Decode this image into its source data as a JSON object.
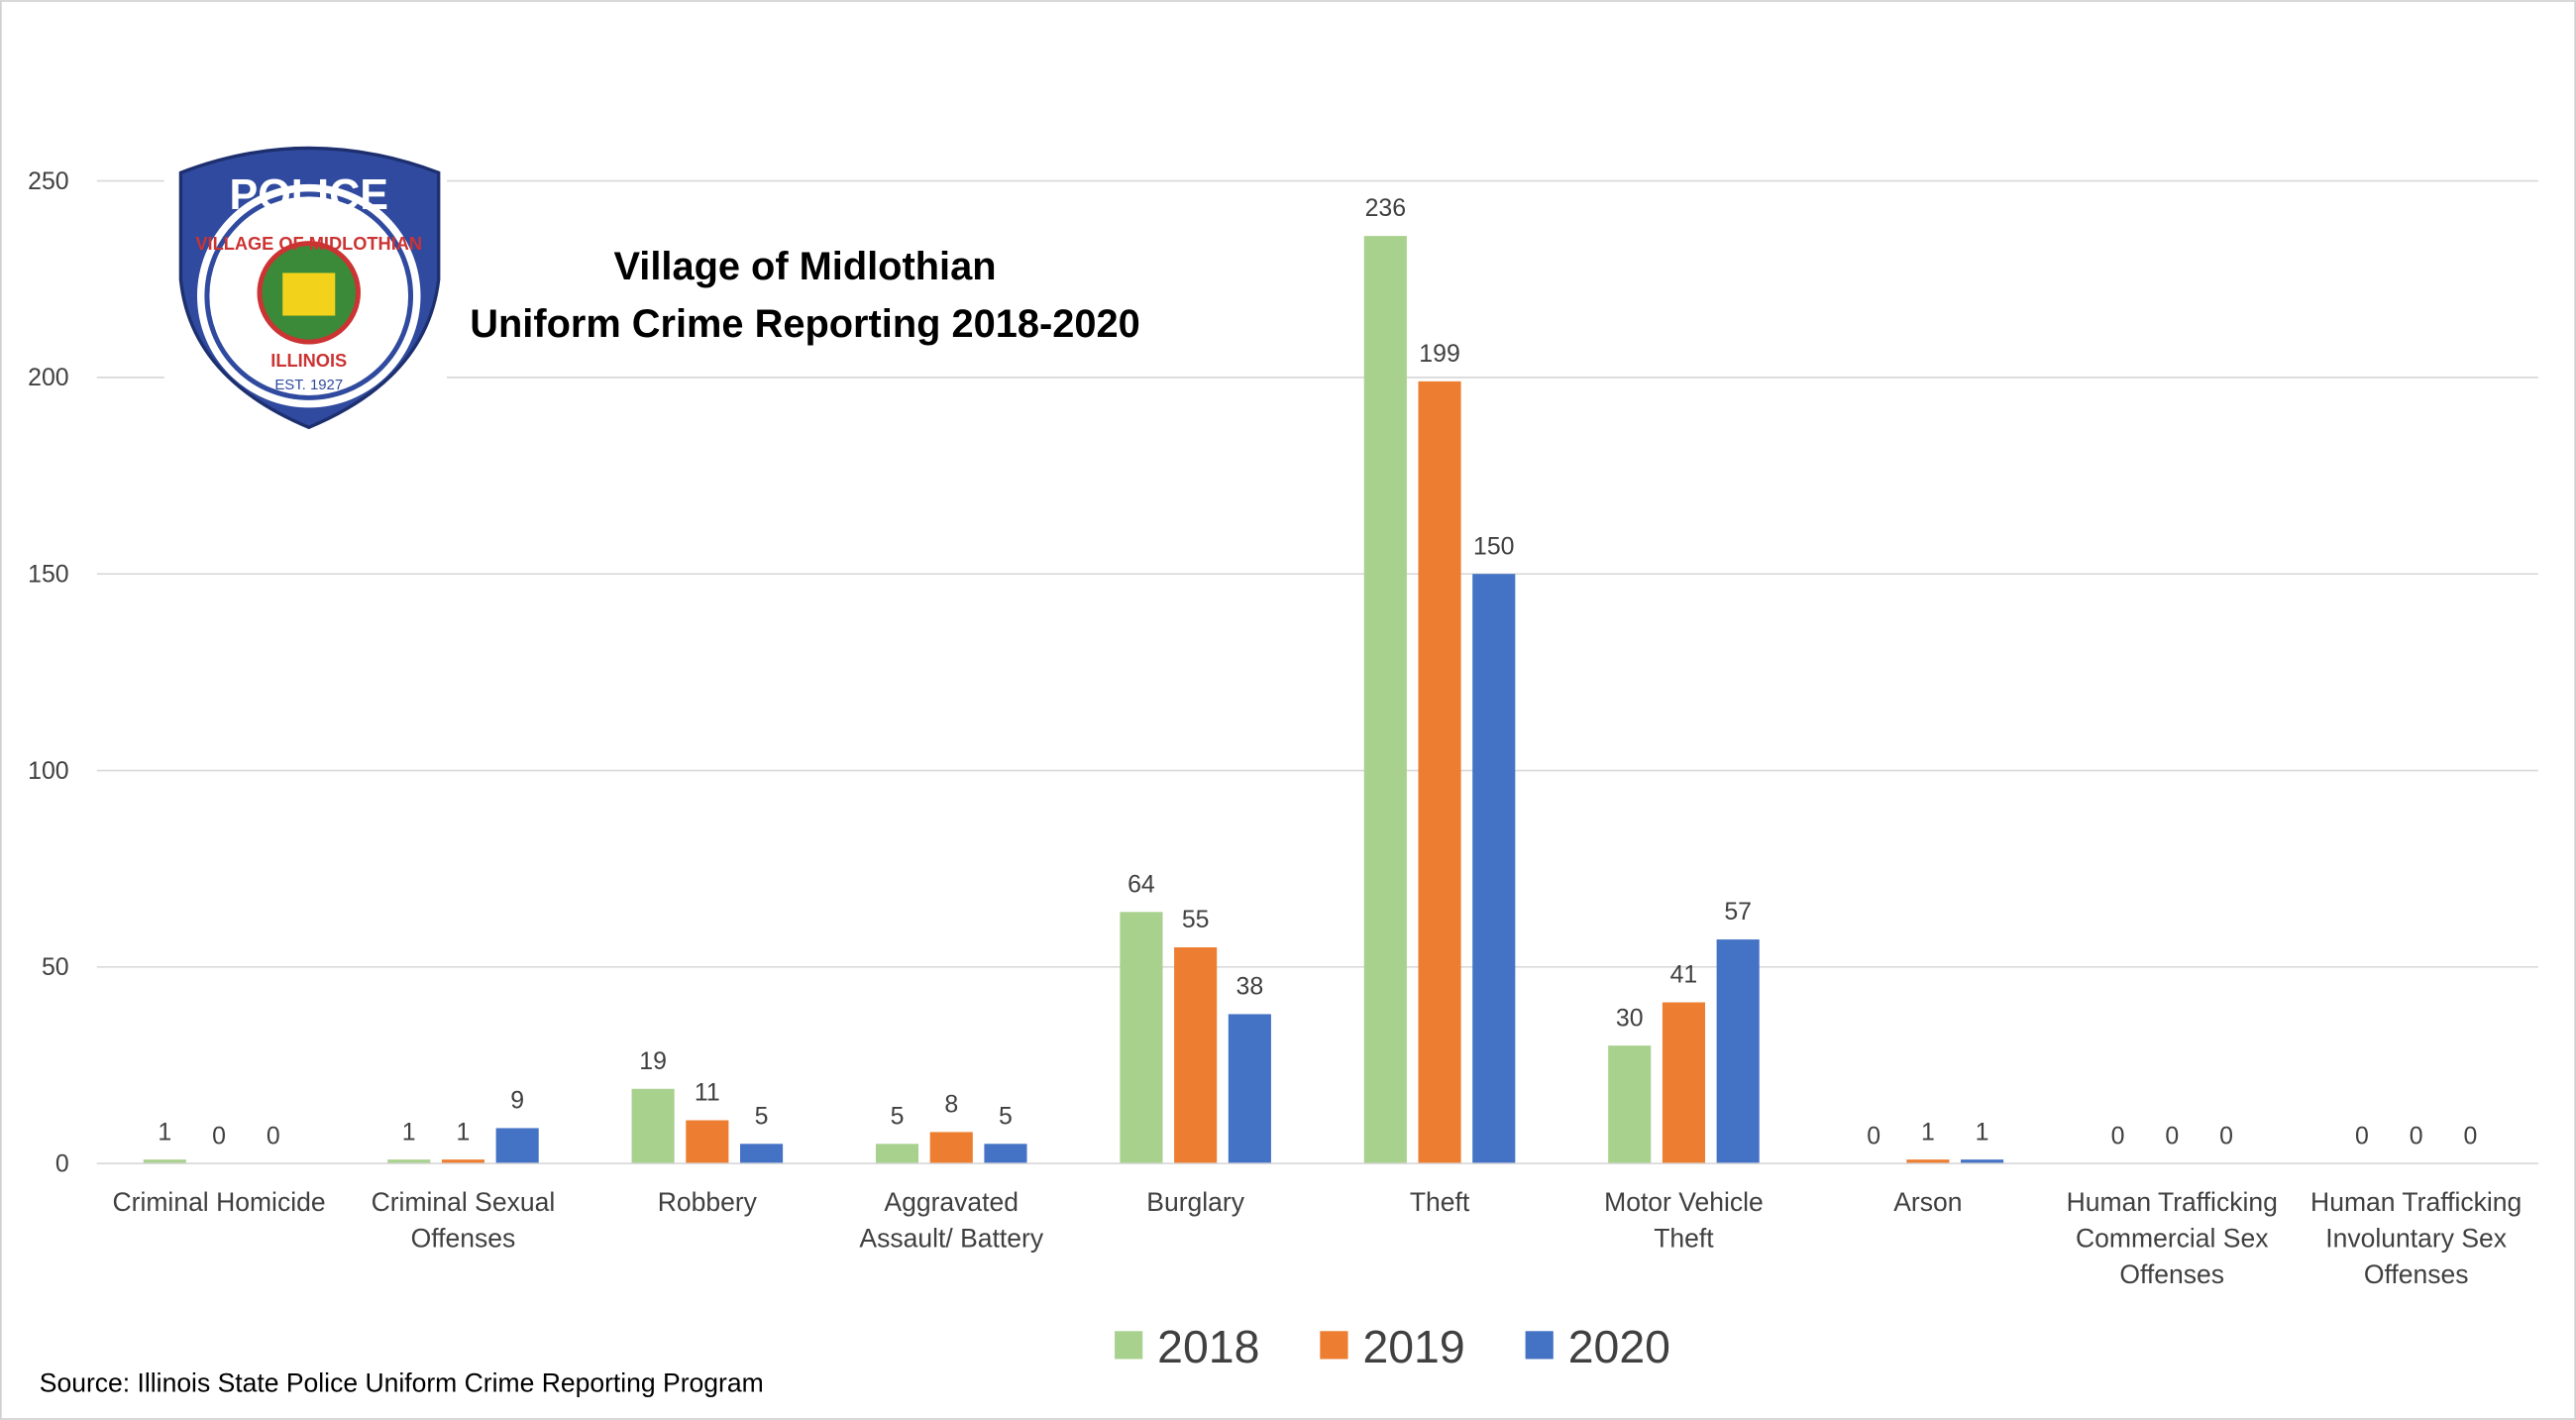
{
  "chart_data": {
    "type": "bar",
    "title": "Village of Midlothian",
    "subtitle": "Uniform Crime Reporting 2018-2020",
    "source": "Source: Illinois State Police Uniform Crime Reporting  Program",
    "categories": [
      [
        "Criminal Homicide"
      ],
      [
        "Criminal Sexual",
        "Offenses"
      ],
      [
        "Robbery"
      ],
      [
        "Aggravated",
        "Assault/ Battery"
      ],
      [
        "Burglary"
      ],
      [
        "Theft"
      ],
      [
        "Motor Vehicle",
        "Theft"
      ],
      [
        "Arson"
      ],
      [
        "Human Trafficking",
        "Commercial Sex",
        "Offenses"
      ],
      [
        "Human Trafficking",
        "Involuntary Sex",
        "Offenses"
      ]
    ],
    "series": [
      {
        "name": "2018",
        "color": "#a9d18e",
        "values": [
          1,
          1,
          19,
          5,
          64,
          236,
          30,
          0,
          0,
          0
        ]
      },
      {
        "name": "2019",
        "color": "#ed7d31",
        "values": [
          0,
          1,
          11,
          8,
          55,
          199,
          41,
          1,
          0,
          0
        ]
      },
      {
        "name": "2020",
        "color": "#4472c4",
        "values": [
          0,
          9,
          5,
          5,
          38,
          150,
          57,
          1,
          0,
          0
        ]
      }
    ],
    "ylim": [
      0,
      250
    ],
    "yticks": [
      0,
      50,
      100,
      150,
      200,
      250
    ],
    "grid": true,
    "legend": "bottom"
  },
  "logo": {
    "top": "POLICE",
    "ring": "VILLAGE OF MIDLOTHIAN",
    "bottom": "ILLINOIS",
    "est": "EST. 1927"
  }
}
